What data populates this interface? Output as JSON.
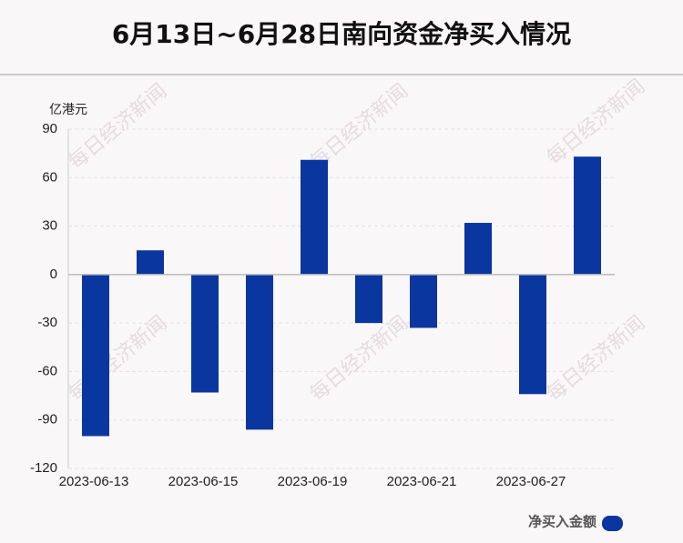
{
  "chart_data": {
    "type": "bar",
    "title": "6月13日~6月28日南向资金净买入情况",
    "y_unit": "亿港元",
    "watermark": "每日经济新闻",
    "categories": [
      "2023-06-13",
      null,
      "2023-06-15",
      null,
      "2023-06-19",
      null,
      "2023-06-21",
      null,
      "2023-06-27",
      null
    ],
    "series": [
      {
        "name": "净买入金额",
        "color": "#0a36a0",
        "values": [
          -100,
          15,
          -73,
          -96,
          71,
          -30,
          -33,
          32,
          -74,
          73
        ]
      }
    ],
    "ylim": [
      -120,
      90
    ],
    "yticks": [
      -120,
      -90,
      -60,
      -30,
      0,
      30,
      60,
      90
    ],
    "grid": true
  }
}
